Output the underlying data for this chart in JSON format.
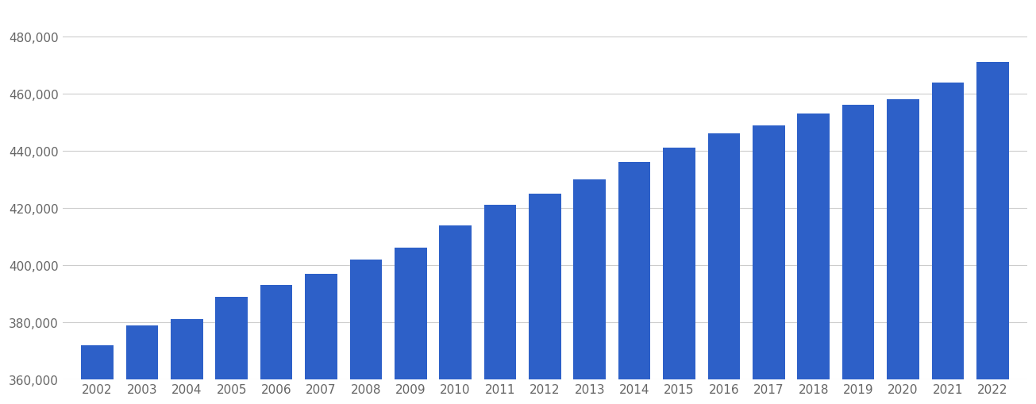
{
  "years": [
    2002,
    2003,
    2004,
    2005,
    2006,
    2007,
    2008,
    2009,
    2010,
    2011,
    2012,
    2013,
    2014,
    2015,
    2016,
    2017,
    2018,
    2019,
    2020,
    2021,
    2022
  ],
  "values": [
    372000,
    379000,
    381000,
    389000,
    393000,
    397000,
    402000,
    406000,
    414000,
    421000,
    425000,
    430000,
    436000,
    441000,
    446000,
    449000,
    453000,
    456000,
    458000,
    464000,
    471000
  ],
  "bar_color": "#2d60c8",
  "background_color": "#ffffff",
  "grid_color": "#cccccc",
  "tick_color": "#666666",
  "ylim_min": 360000,
  "ylim_max": 490000,
  "ytick_step": 20000,
  "ylabel_fontsize": 11,
  "xlabel_fontsize": 11
}
